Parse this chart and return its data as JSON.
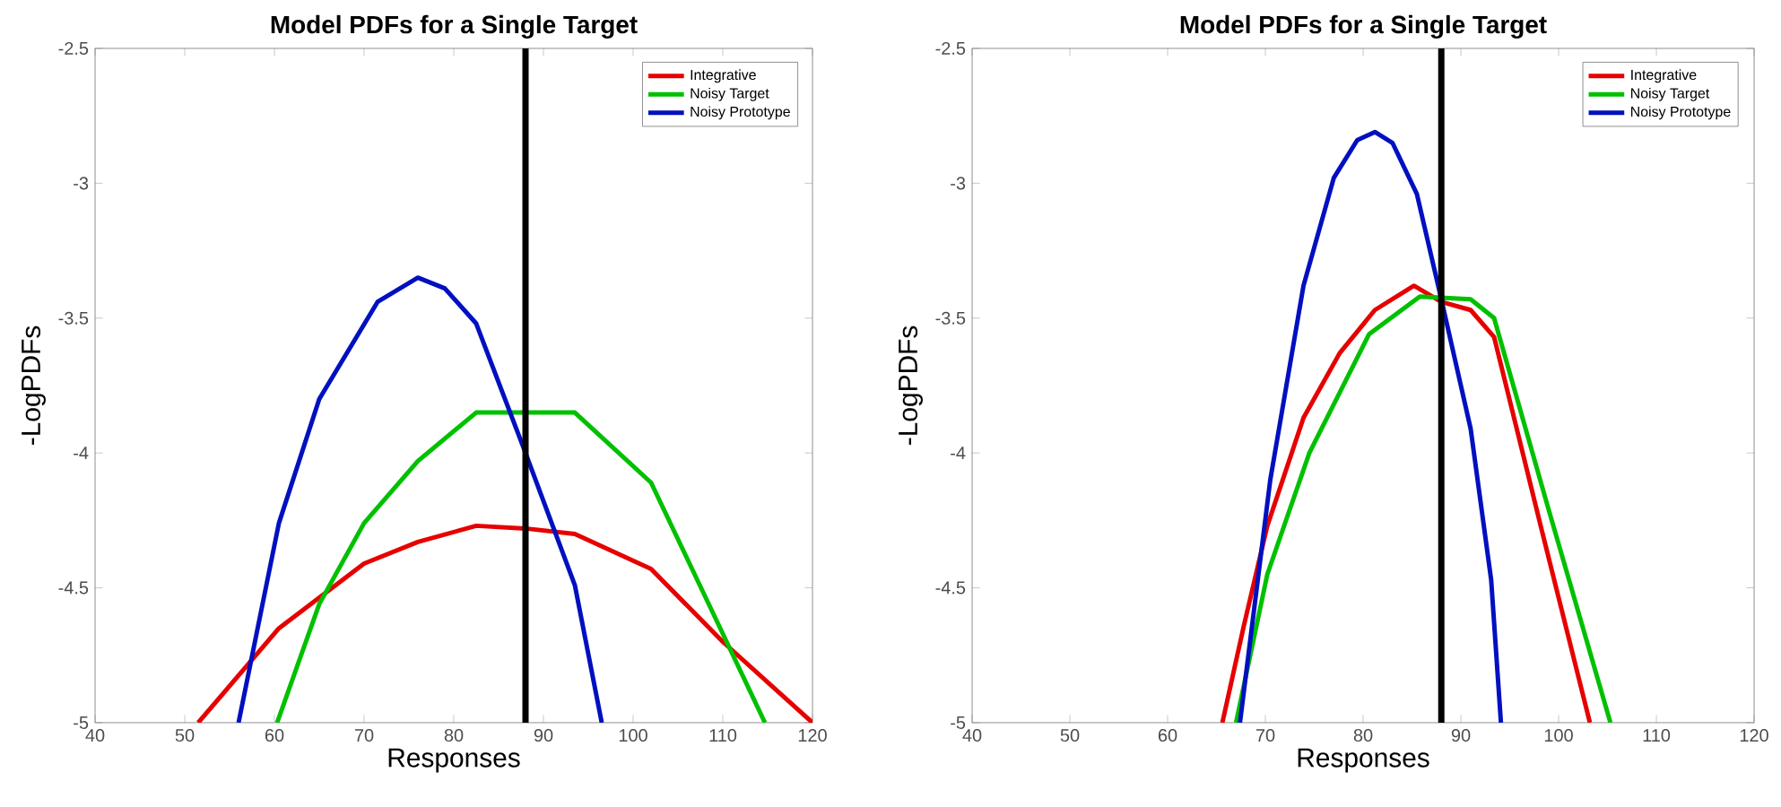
{
  "chart_data": [
    {
      "type": "line",
      "title": "Model PDFs for a Single Target",
      "xlabel": "Responses",
      "ylabel": "-LogPDFs",
      "xlim": [
        40,
        120
      ],
      "ylim": [
        -5,
        -2.5
      ],
      "xticks": [
        40,
        50,
        60,
        70,
        80,
        90,
        100,
        110,
        120
      ],
      "yticks": [
        -5,
        -4.5,
        -4,
        -3.5,
        -3,
        -2.5
      ],
      "legend": "top right",
      "grid": false,
      "marker": "none",
      "line_style": "solid",
      "series": [
        {
          "name": "Integrative",
          "color": "#e60000",
          "x": [
            51.5,
            60.5,
            70,
            76,
            82.5,
            88,
            93.5,
            102,
            110,
            120
          ],
          "values": [
            -5,
            -4.65,
            -4.41,
            -4.33,
            -4.27,
            -4.28,
            -4.3,
            -4.43,
            -4.7,
            -5
          ]
        },
        {
          "name": "Noisy Target",
          "color": "#00c000",
          "x": [
            60.3,
            65,
            70,
            76,
            82.5,
            93.5,
            102,
            110,
            114.7
          ],
          "values": [
            -5,
            -4.56,
            -4.26,
            -4.03,
            -3.85,
            -3.85,
            -4.11,
            -4.67,
            -5
          ]
        },
        {
          "name": "Noisy Prototype",
          "color": "#0010c0",
          "x": [
            56,
            60.5,
            65,
            71.5,
            76,
            79,
            82.5,
            88,
            93.5,
            96.5
          ],
          "values": [
            -5,
            -4.26,
            -3.8,
            -3.44,
            -3.35,
            -3.39,
            -3.52,
            -4.0,
            -4.49,
            -5
          ]
        }
      ],
      "ref_lines": [
        {
          "axis": "x",
          "value": 88,
          "color": "#000000"
        }
      ]
    },
    {
      "type": "line",
      "title": "Model PDFs for a Single Target",
      "xlabel": "Responses",
      "ylabel": "-LogPDFs",
      "xlim": [
        40,
        120
      ],
      "ylim": [
        -5,
        -2.5
      ],
      "xticks": [
        40,
        50,
        60,
        70,
        80,
        90,
        100,
        110,
        120
      ],
      "yticks": [
        -5,
        -4.5,
        -4,
        -3.5,
        -3,
        -2.5
      ],
      "legend": "top right",
      "grid": false,
      "marker": "none",
      "line_style": "solid",
      "series": [
        {
          "name": "Integrative",
          "color": "#e60000",
          "x": [
            65.6,
            67.8,
            70.2,
            73.9,
            77.6,
            81.2,
            85.2,
            88,
            91,
            93.4,
            98.3,
            103.2
          ],
          "values": [
            -5,
            -4.64,
            -4.27,
            -3.87,
            -3.63,
            -3.47,
            -3.38,
            -3.44,
            -3.47,
            -3.57,
            -4.29,
            -5
          ]
        },
        {
          "name": "Noisy Target",
          "color": "#00c000",
          "x": [
            67,
            70.2,
            74.5,
            80.6,
            85.8,
            91,
            93.4,
            98.9,
            105.3
          ],
          "values": [
            -5,
            -4.45,
            -4.0,
            -3.56,
            -3.42,
            -3.43,
            -3.5,
            -4.2,
            -5
          ]
        },
        {
          "name": "Noisy Prototype",
          "color": "#0010c0",
          "x": [
            67.4,
            70.5,
            73.9,
            77,
            79.4,
            81.2,
            83,
            85.5,
            88,
            91,
            93.1,
            94.1
          ],
          "values": [
            -5,
            -4.1,
            -3.38,
            -2.98,
            -2.84,
            -2.81,
            -2.85,
            -3.04,
            -3.43,
            -3.91,
            -4.47,
            -5
          ]
        }
      ],
      "ref_lines": [
        {
          "axis": "x",
          "value": 88,
          "color": "#000000"
        }
      ]
    }
  ]
}
